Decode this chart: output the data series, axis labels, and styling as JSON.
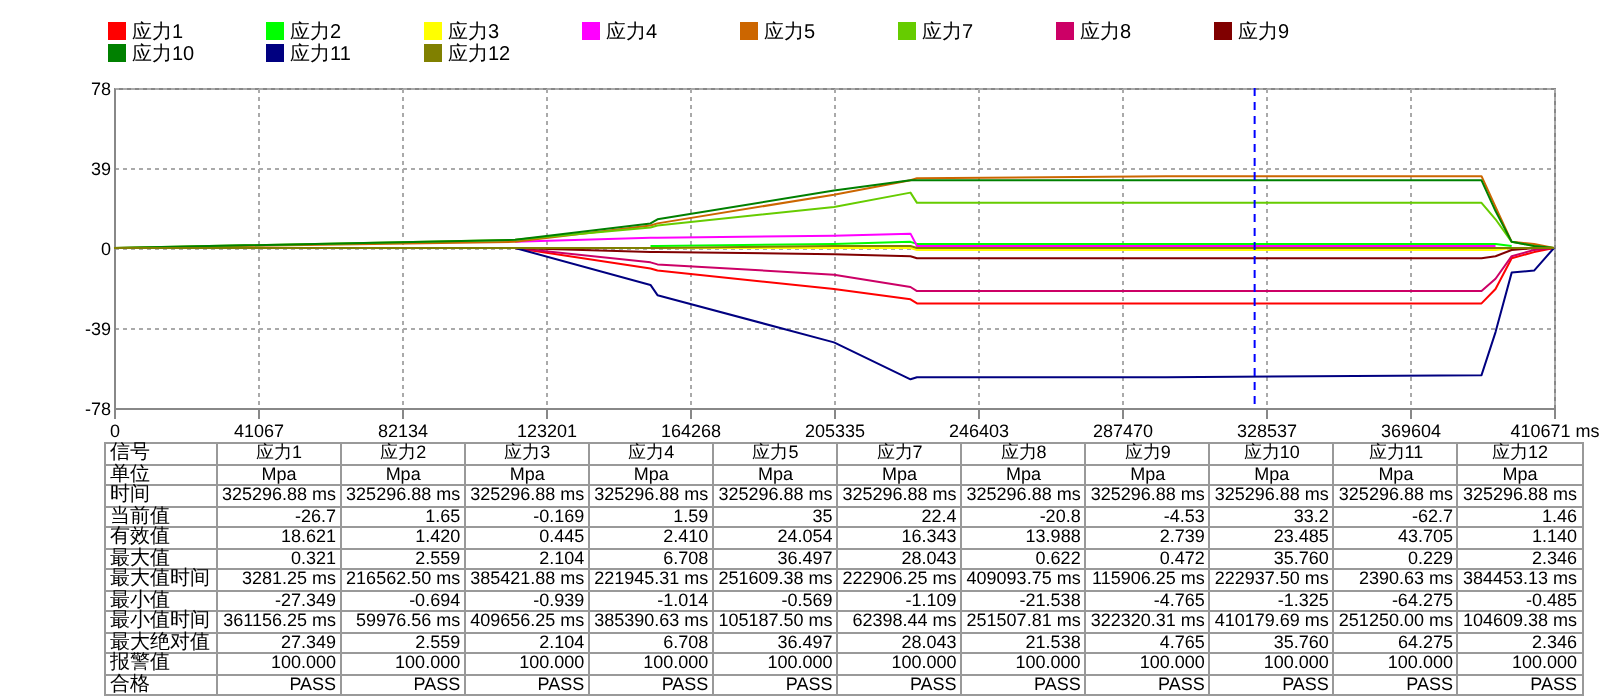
{
  "chart_data": {
    "type": "line",
    "x": [
      0,
      114400,
      153000,
      155000,
      205335,
      227150,
      229000,
      300000,
      390000,
      394000,
      398600,
      405000,
      410671
    ],
    "xlim": [
      0,
      410671
    ],
    "xticks": [
      0,
      41067,
      82134,
      123201,
      164268,
      205335,
      246403,
      287470,
      328537,
      369604,
      {
        "value": 410671,
        "label": "410671 ms"
      }
    ],
    "ylim": [
      -78,
      78
    ],
    "yticks": [
      -78,
      -39,
      0,
      39,
      78
    ],
    "grid": true,
    "legend": "top left",
    "marker": "none",
    "line_style": "solid",
    "series": [
      {
        "name": "应力1",
        "color": "#ff0000",
        "values": [
          0,
          0,
          -10,
          -11,
          -20,
          -25,
          -27,
          -27,
          -27,
          -20,
          -5,
          -2,
          0
        ]
      },
      {
        "name": "应力2",
        "color": "#00ff00",
        "values": [
          null,
          null,
          1,
          1,
          2,
          3,
          2,
          2,
          2,
          2,
          1,
          null,
          null
        ]
      },
      {
        "name": "应力3",
        "color": "#ffff00",
        "values": [
          null,
          null,
          0,
          0,
          0,
          0,
          -1,
          -1,
          -1,
          -1,
          0,
          0,
          0
        ]
      },
      {
        "name": "应力4",
        "color": "#ff00ff",
        "values": [
          null,
          3,
          5,
          5,
          6,
          7,
          1,
          1,
          1,
          1,
          null,
          null,
          null
        ]
      },
      {
        "name": "应力5",
        "color": "#cc6600",
        "values": [
          0,
          3,
          11,
          12,
          26,
          33,
          34,
          35,
          35,
          20,
          3,
          2,
          0
        ]
      },
      {
        "name": "应力7",
        "color": "#66cc00",
        "values": [
          0,
          4,
          10,
          11,
          20,
          27,
          22,
          22,
          22,
          14,
          3,
          1,
          0
        ]
      },
      {
        "name": "应力8",
        "color": "#cc0066",
        "values": [
          0,
          0,
          -7,
          -8,
          -13,
          -19,
          -21,
          -21,
          -21,
          -15,
          -4,
          -1,
          0
        ]
      },
      {
        "name": "应力9",
        "color": "#800000",
        "values": [
          0,
          0,
          -2,
          -2,
          -3,
          -4,
          -5,
          -5,
          -5,
          -4,
          -1,
          0,
          0
        ]
      },
      {
        "name": "应力10",
        "color": "#008000",
        "values": [
          0,
          4,
          12,
          14,
          28,
          33,
          33,
          33,
          33,
          18,
          3,
          1,
          0
        ]
      },
      {
        "name": "应力11",
        "color": "#000080",
        "values": [
          0,
          0,
          -18,
          -23,
          -46,
          -64,
          -63,
          -63,
          -62,
          -41,
          -12,
          -11,
          0
        ]
      },
      {
        "name": "应力12",
        "color": "#808000",
        "values": [
          0,
          0,
          0,
          0,
          1,
          1,
          0,
          0,
          0,
          0,
          0,
          0,
          0
        ]
      }
    ],
    "ref_lines": [
      {
        "axis": "x",
        "value": 325296.88,
        "color": "#0000ff",
        "line_style": "dashed"
      }
    ],
    "annotations": [
      "信号",
      "应力1",
      "应力2",
      "应力3",
      "应力4",
      "应力5",
      "应力7",
      "应力8",
      "应力9",
      "应力10",
      "应力11",
      "应力12",
      "单位",
      "Mpa",
      "Mpa",
      "Mpa",
      "Mpa",
      "Mpa",
      "Mpa",
      "Mpa",
      "Mpa",
      "Mpa",
      "Mpa",
      "Mpa",
      "时间",
      "325296.88 ms",
      "325296.88 ms",
      "325296.88 ms",
      "325296.88 ms",
      "325296.88 ms",
      "325296.88 ms",
      "325296.88 ms",
      "325296.88 ms",
      "325296.88 ms",
      "325296.88 ms",
      "325296.88 ms",
      "当前值",
      "-26.7",
      "1.65",
      "-0.169",
      "1.59",
      "35",
      "22.4",
      "-20.8",
      "-4.53",
      "33.2",
      "-62.7",
      "1.46",
      "有效值",
      "18.621",
      "1.420",
      "0.445",
      "2.410",
      "24.054",
      "16.343",
      "13.988",
      "2.739",
      "23.485",
      "43.705",
      "1.140",
      "最大值",
      "0.321",
      "2.559",
      "2.104",
      "6.708",
      "36.497",
      "28.043",
      "0.622",
      "0.472",
      "35.760",
      "0.229",
      "2.346",
      "最大值时间",
      "3281.25 ms",
      "216562.50 ms",
      "385421.88 ms",
      "221945.31 ms",
      "251609.38 ms",
      "222906.25 ms",
      "409093.75 ms",
      "115906.25 ms",
      "222937.50 ms",
      "2390.63 ms",
      "384453.13 ms",
      "最小值",
      "-27.349",
      "-0.694",
      "-0.939",
      "-1.014",
      "-0.569",
      "-1.109",
      "-21.538",
      "-4.765",
      "-1.325",
      "-64.275",
      "-0.485",
      "最小值时间",
      "361156.25 ms",
      "59976.56 ms",
      "409656.25 ms",
      "385390.63 ms",
      "105187.50 ms",
      "62398.44 ms",
      "251507.81 ms",
      "322320.31 ms",
      "410179.69 ms",
      "251250.00 ms",
      "104609.38 ms",
      "最大绝对值",
      "27.349",
      "2.559",
      "2.104",
      "6.708",
      "36.497",
      "28.043",
      "21.538",
      "4.765",
      "35.760",
      "64.275",
      "2.346",
      "报警值",
      "100.000",
      "100.000",
      "100.000",
      "100.000",
      "100.000",
      "100.000",
      "100.000",
      "100.000",
      "100.000",
      "100.000",
      "100.000",
      "合格",
      "PASS",
      "PASS",
      "PASS",
      "PASS",
      "PASS",
      "PASS",
      "PASS",
      "PASS",
      "PASS",
      "PASS",
      "PASS"
    ]
  }
}
